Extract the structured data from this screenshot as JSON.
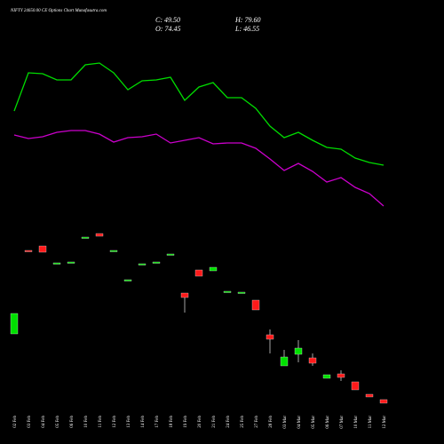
{
  "chart_data": {
    "type": "candlestick",
    "title": "NIFTY 24650.00 CE Options  Chart Munafasutra.com",
    "readout": [
      "C: 49.50",
      "H: 79.60",
      "O: 74.45",
      "L: 46.55"
    ],
    "categories": [
      "02 Feb",
      "03 Feb",
      "04 Feb",
      "05 Feb",
      "06 Feb",
      "10 Feb",
      "11 Feb",
      "12 Feb",
      "13 Feb",
      "14 Feb",
      "17 Feb",
      "18 Feb",
      "19 Feb",
      "20 Feb",
      "21 Feb",
      "24 Feb",
      "25 Feb",
      "27 Feb",
      "28 Feb",
      "03 Mar",
      "04 Mar",
      "05 Mar",
      "06 Mar",
      "07 Mar",
      "10 Mar",
      "11 Mar",
      "12 Mar"
    ],
    "open": [
      124,
      218,
      223,
      203,
      204,
      232,
      237,
      217,
      184,
      202,
      204,
      213,
      170,
      196,
      195,
      171,
      170,
      162,
      123,
      88,
      101,
      97,
      74,
      79,
      70,
      56,
      50
    ],
    "close": [
      147,
      217,
      216,
      204,
      205,
      233,
      234,
      218,
      185,
      203,
      205,
      214,
      165,
      189,
      199,
      172,
      171,
      151,
      118,
      98,
      108,
      91,
      78,
      75,
      61,
      53,
      46
    ],
    "high": [
      147,
      218,
      223,
      204,
      205,
      233,
      237,
      218,
      185,
      203,
      205,
      214,
      170,
      196,
      199,
      172,
      171,
      162,
      129,
      106,
      117,
      102,
      78,
      83,
      70,
      56,
      50
    ],
    "low": [
      124,
      217,
      216,
      203,
      204,
      232,
      234,
      217,
      184,
      202,
      204,
      213,
      148,
      189,
      195,
      171,
      170,
      151,
      102,
      88,
      92,
      88,
      74,
      71,
      61,
      53,
      46
    ],
    "up_color": "#00e000",
    "down_color": "#ff1a1a",
    "lines": [
      {
        "color": "#00dd00",
        "values": [
          375,
          418,
          417,
          410,
          410,
          427,
          429,
          418,
          399,
          409,
          410,
          413,
          387,
          402,
          407,
          390,
          390,
          378,
          358,
          345,
          351,
          342,
          334,
          332,
          322,
          317,
          314
        ]
      },
      {
        "color": "#cc00cc",
        "values": [
          348,
          344,
          346,
          351,
          353,
          353,
          349,
          340,
          345,
          346,
          349,
          339,
          342,
          345,
          338,
          339,
          339,
          333,
          321,
          308,
          316,
          307,
          295,
          300,
          289,
          282,
          268
        ]
      }
    ],
    "ylim": [
      0,
      500
    ]
  }
}
